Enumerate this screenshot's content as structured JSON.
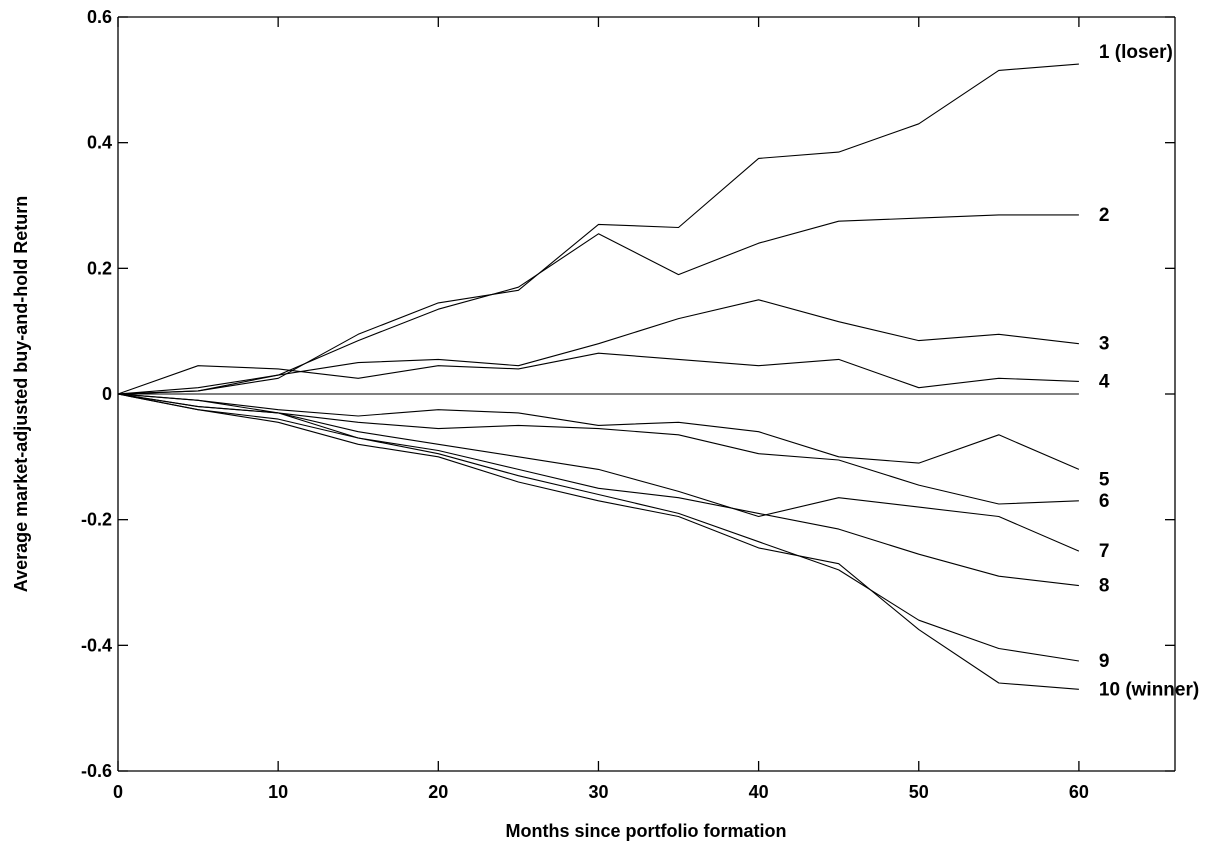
{
  "chart_data": {
    "type": "line",
    "title": "",
    "xlabel": "Months since portfolio formation",
    "ylabel": "Average market-adjusted buy-and-hold Return",
    "xlim": [
      0,
      66
    ],
    "ylim": [
      -0.6,
      0.6
    ],
    "xticks": [
      0,
      10,
      20,
      30,
      40,
      50,
      60
    ],
    "xtick_labels": [
      "0",
      "10",
      "20",
      "30",
      "40",
      "50",
      "60"
    ],
    "yticks": [
      0.6,
      0.4,
      0.2,
      0,
      -0.2,
      -0.4,
      -0.6
    ],
    "ytick_labels": [
      "0.6",
      "0.4",
      "0.2",
      "0",
      "-0.2",
      "-0.4",
      "-0.6"
    ],
    "grid": false,
    "reference_line_y": 0,
    "x": [
      0,
      5,
      10,
      15,
      20,
      25,
      30,
      35,
      40,
      45,
      50,
      55,
      60
    ],
    "series": [
      {
        "name": "1 (loser)",
        "values": [
          0,
          0.005,
          0.025,
          0.095,
          0.145,
          0.165,
          0.27,
          0.265,
          0.375,
          0.385,
          0.43,
          0.515,
          0.525
        ]
      },
      {
        "name": "2",
        "values": [
          0,
          0.005,
          0.03,
          0.085,
          0.135,
          0.17,
          0.255,
          0.19,
          0.24,
          0.275,
          0.28,
          0.285,
          0.285
        ]
      },
      {
        "name": "3",
        "values": [
          0,
          0.01,
          0.03,
          0.05,
          0.055,
          0.045,
          0.08,
          0.12,
          0.15,
          0.115,
          0.085,
          0.095,
          0.08
        ]
      },
      {
        "name": "4",
        "values": [
          0,
          0.045,
          0.04,
          0.025,
          0.045,
          0.04,
          0.065,
          0.055,
          0.045,
          0.055,
          0.01,
          0.025,
          0.02
        ]
      },
      {
        "name": "5",
        "values": [
          0,
          -0.01,
          -0.025,
          -0.035,
          -0.025,
          -0.03,
          -0.05,
          -0.045,
          -0.06,
          -0.1,
          -0.11,
          -0.065,
          -0.12
        ]
      },
      {
        "name": "6",
        "values": [
          0,
          -0.01,
          -0.03,
          -0.045,
          -0.055,
          -0.05,
          -0.055,
          -0.065,
          -0.095,
          -0.105,
          -0.145,
          -0.175,
          -0.17
        ]
      },
      {
        "name": "7",
        "values": [
          0,
          -0.02,
          -0.03,
          -0.06,
          -0.08,
          -0.1,
          -0.12,
          -0.155,
          -0.195,
          -0.165,
          -0.18,
          -0.195,
          -0.25
        ]
      },
      {
        "name": "8",
        "values": [
          0,
          -0.02,
          -0.03,
          -0.07,
          -0.09,
          -0.12,
          -0.15,
          -0.165,
          -0.19,
          -0.215,
          -0.255,
          -0.29,
          -0.305
        ]
      },
      {
        "name": "9",
        "values": [
          0,
          -0.025,
          -0.04,
          -0.07,
          -0.095,
          -0.13,
          -0.16,
          -0.19,
          -0.235,
          -0.28,
          -0.36,
          -0.405,
          -0.425
        ]
      },
      {
        "name": "10 (winner)",
        "values": [
          0,
          -0.025,
          -0.045,
          -0.08,
          -0.1,
          -0.14,
          -0.17,
          -0.195,
          -0.245,
          -0.27,
          -0.375,
          -0.46,
          -0.47
        ]
      }
    ]
  }
}
